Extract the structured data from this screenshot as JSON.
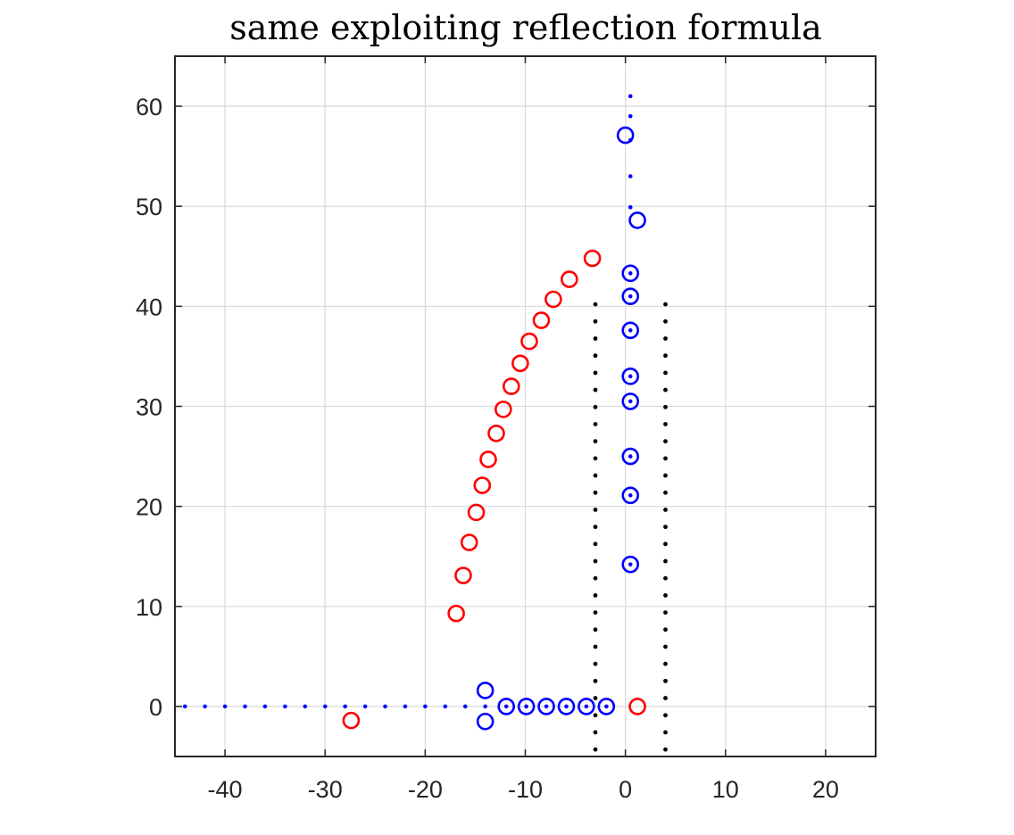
{
  "chart_data": {
    "type": "scatter",
    "title": "same exploiting reflection formula",
    "xlabel": "",
    "ylabel": "",
    "xlim": [
      -45,
      25
    ],
    "ylim": [
      -5,
      65
    ],
    "xticks": [
      -40,
      -30,
      -20,
      -10,
      0,
      10,
      20
    ],
    "yticks": [
      0,
      10,
      20,
      30,
      40,
      50,
      60
    ],
    "xtick_labels": [
      "-40",
      "-30",
      "-20",
      "-10",
      "0",
      "10",
      "20"
    ],
    "ytick_labels": [
      "0",
      "10",
      "20",
      "30",
      "40",
      "50",
      "60"
    ],
    "grid": true,
    "legend": "none",
    "colors": {
      "blue": "#0000ff",
      "red": "#ff0000",
      "black": "#000000",
      "grid": "#dcdcdc",
      "axes": "#262626"
    },
    "series": [
      {
        "marker": "circle",
        "color": "#0000ff",
        "points": [
          [
            0.0,
            57.1
          ],
          [
            1.2,
            48.6
          ],
          [
            0.5,
            43.3
          ],
          [
            0.5,
            41.0
          ],
          [
            0.5,
            37.6
          ],
          [
            0.5,
            33.0
          ],
          [
            0.5,
            30.5
          ],
          [
            0.5,
            25.0
          ],
          [
            0.5,
            21.1
          ],
          [
            0.5,
            14.2
          ],
          [
            -14.0,
            1.6
          ],
          [
            -14.0,
            -1.5
          ],
          [
            -11.9,
            0.0
          ],
          [
            -9.9,
            0.0
          ],
          [
            -7.9,
            0.0
          ],
          [
            -5.9,
            0.0
          ],
          [
            -3.9,
            0.0
          ],
          [
            -1.9,
            0.0
          ]
        ]
      },
      {
        "marker": "dot",
        "color": "#0000ff",
        "points": [
          [
            -44.0,
            0.0
          ],
          [
            -42.0,
            0.0
          ],
          [
            -40.0,
            0.0
          ],
          [
            -38.0,
            0.0
          ],
          [
            -36.0,
            0.0
          ],
          [
            -34.0,
            0.0
          ],
          [
            -32.0,
            0.0
          ],
          [
            -30.0,
            0.0
          ],
          [
            -28.0,
            0.0
          ],
          [
            -26.0,
            0.0
          ],
          [
            -24.0,
            0.0
          ],
          [
            -22.0,
            0.0
          ],
          [
            -20.0,
            0.0
          ],
          [
            -18.0,
            0.0
          ],
          [
            -16.0,
            0.0
          ],
          [
            -14.0,
            0.0
          ],
          [
            -11.9,
            0.0
          ],
          [
            -9.9,
            0.0
          ],
          [
            -7.9,
            0.0
          ],
          [
            -5.9,
            0.0
          ],
          [
            -3.9,
            0.0
          ],
          [
            -1.9,
            0.0
          ],
          [
            0.5,
            14.2
          ],
          [
            0.5,
            21.1
          ],
          [
            0.5,
            25.0
          ],
          [
            0.5,
            30.5
          ],
          [
            0.5,
            33.0
          ],
          [
            0.5,
            37.6
          ],
          [
            0.5,
            41.0
          ],
          [
            0.5,
            43.3
          ],
          [
            0.5,
            49.9
          ],
          [
            0.5,
            53.0
          ],
          [
            0.5,
            56.6
          ],
          [
            0.5,
            59.0
          ],
          [
            0.5,
            61.0
          ]
        ]
      },
      {
        "marker": "circle",
        "color": "#ff0000",
        "points": [
          [
            -27.4,
            -1.4
          ],
          [
            -16.9,
            9.3
          ],
          [
            -16.2,
            13.1
          ],
          [
            -15.6,
            16.4
          ],
          [
            -14.9,
            19.4
          ],
          [
            -14.3,
            22.1
          ],
          [
            -13.7,
            24.7
          ],
          [
            -12.9,
            27.3
          ],
          [
            -12.2,
            29.7
          ],
          [
            -11.4,
            32.0
          ],
          [
            -10.5,
            34.3
          ],
          [
            -9.6,
            36.5
          ],
          [
            -8.4,
            38.6
          ],
          [
            -7.2,
            40.7
          ],
          [
            -5.6,
            42.7
          ],
          [
            -3.3,
            44.8
          ],
          [
            1.2,
            0.0
          ]
        ]
      },
      {
        "marker": "dot",
        "color": "#000000",
        "segments": [
          {
            "x": -3.0,
            "y_from": -4.3,
            "y_to": 40.2,
            "n": 27
          },
          {
            "x": 4.0,
            "y_from": -4.3,
            "y_to": 40.2,
            "n": 27
          }
        ]
      }
    ]
  }
}
